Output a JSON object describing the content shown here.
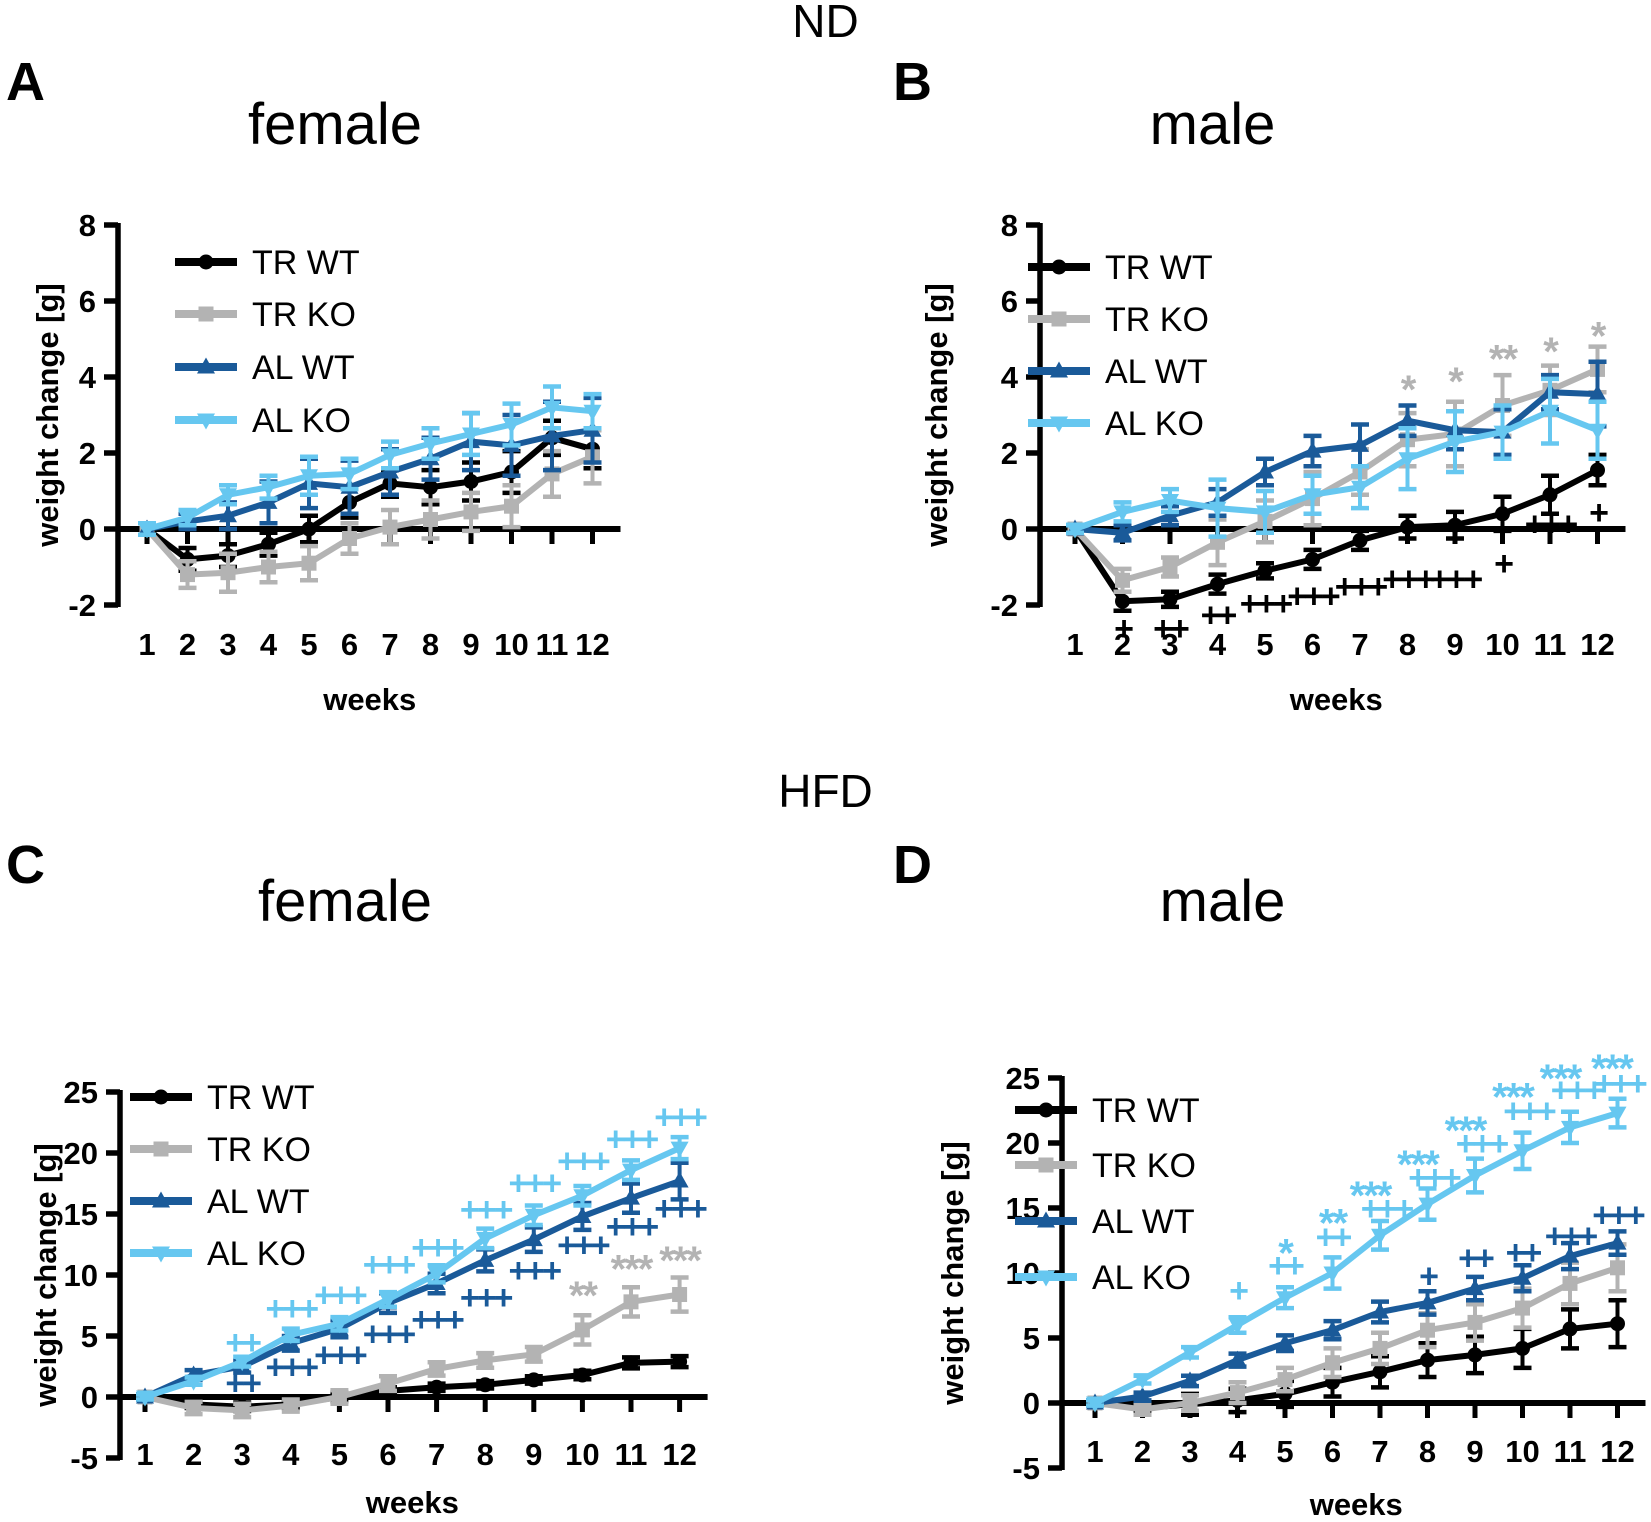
{
  "figure": {
    "group_titles": {
      "top": "ND",
      "bottom": "HFD"
    },
    "colors": {
      "black": "#000000",
      "gray": "#b3b3b3",
      "darkblue": "#1a5a99",
      "lightblue": "#66c7f0"
    }
  },
  "chart_data": [
    {
      "panel_label": "A",
      "title": "female",
      "diet_group": "ND",
      "type": "line",
      "xlabel": "weeks",
      "ylabel": "weight change [g]",
      "x": [
        1,
        2,
        3,
        4,
        5,
        6,
        7,
        8,
        9,
        10,
        11,
        12
      ],
      "ylim": [
        -2,
        8
      ],
      "yticks": [
        -2,
        0,
        2,
        4,
        6,
        8
      ],
      "grid": false,
      "legend_position": "top-left-inside",
      "series": [
        {
          "name": "TR WT",
          "color": "black",
          "marker": "circle",
          "values": [
            0,
            -0.8,
            -0.7,
            -0.4,
            0.0,
            0.7,
            1.2,
            1.1,
            1.25,
            1.5,
            2.4,
            2.1
          ],
          "errors": [
            0.15,
            0.3,
            0.3,
            0.3,
            0.35,
            0.4,
            0.35,
            0.45,
            0.5,
            0.55,
            0.45,
            0.5
          ]
        },
        {
          "name": "TR KO",
          "color": "gray",
          "marker": "square",
          "values": [
            0,
            -1.2,
            -1.15,
            -1.0,
            -0.9,
            -0.25,
            0.05,
            0.25,
            0.45,
            0.6,
            1.45,
            1.9
          ],
          "errors": [
            0.15,
            0.35,
            0.5,
            0.4,
            0.45,
            0.4,
            0.45,
            0.5,
            0.5,
            0.55,
            0.6,
            0.7
          ]
        },
        {
          "name": "AL WT",
          "color": "darkblue",
          "marker": "triangle-up",
          "values": [
            0,
            0.2,
            0.35,
            0.7,
            1.2,
            1.1,
            1.5,
            1.85,
            2.3,
            2.2,
            2.45,
            2.6
          ],
          "errors": [
            0.15,
            0.2,
            0.35,
            0.55,
            0.65,
            0.7,
            0.6,
            0.55,
            0.75,
            0.8,
            0.9,
            0.85
          ]
        },
        {
          "name": "AL KO",
          "color": "lightblue",
          "marker": "triangle-down",
          "values": [
            0,
            0.3,
            0.9,
            1.1,
            1.4,
            1.45,
            1.95,
            2.25,
            2.5,
            2.75,
            3.2,
            3.1
          ],
          "errors": [
            0.15,
            0.2,
            0.25,
            0.3,
            0.5,
            0.4,
            0.35,
            0.4,
            0.55,
            0.55,
            0.55,
            0.45
          ]
        }
      ],
      "annotations": []
    },
    {
      "panel_label": "B",
      "title": "male",
      "diet_group": "ND",
      "type": "line",
      "xlabel": "weeks",
      "ylabel": "weight change [g]",
      "x": [
        1,
        2,
        3,
        4,
        5,
        6,
        7,
        8,
        9,
        10,
        11,
        12
      ],
      "ylim": [
        -2,
        8
      ],
      "yticks": [
        -2,
        0,
        2,
        4,
        6,
        8
      ],
      "grid": false,
      "legend_position": "top-left-inside",
      "series": [
        {
          "name": "TR WT",
          "color": "black",
          "marker": "circle",
          "values": [
            0,
            -1.9,
            -1.85,
            -1.45,
            -1.1,
            -0.8,
            -0.3,
            0.05,
            0.1,
            0.4,
            0.9,
            1.55
          ],
          "errors": [
            0.1,
            0.25,
            0.2,
            0.25,
            0.2,
            0.25,
            0.25,
            0.3,
            0.35,
            0.45,
            0.5,
            0.4
          ]
        },
        {
          "name": "TR KO",
          "color": "gray",
          "marker": "square",
          "values": [
            0,
            -1.35,
            -1.0,
            -0.35,
            0.2,
            0.8,
            1.5,
            2.35,
            2.5,
            3.25,
            3.65,
            4.2
          ],
          "errors": [
            0.1,
            0.3,
            0.25,
            0.6,
            0.55,
            0.7,
            0.6,
            0.7,
            0.85,
            0.8,
            0.65,
            0.6
          ]
        },
        {
          "name": "AL WT",
          "color": "darkblue",
          "marker": "triangle-up",
          "values": [
            0,
            -0.1,
            0.35,
            0.7,
            1.5,
            2.05,
            2.2,
            2.85,
            2.6,
            2.55,
            3.6,
            3.55
          ],
          "errors": [
            0.1,
            0.2,
            0.25,
            0.35,
            0.35,
            0.4,
            0.55,
            0.4,
            0.5,
            0.6,
            0.45,
            0.85
          ]
        },
        {
          "name": "AL KO",
          "color": "lightblue",
          "marker": "triangle-down",
          "values": [
            0,
            0.45,
            0.75,
            0.55,
            0.45,
            0.9,
            1.1,
            1.85,
            2.3,
            2.55,
            3.1,
            2.6
          ],
          "errors": [
            0.1,
            0.25,
            0.3,
            0.75,
            0.55,
            0.5,
            0.55,
            0.8,
            0.8,
            0.7,
            0.85,
            0.75
          ]
        }
      ],
      "annotations": [
        {
          "week": 2,
          "text": "+",
          "color": "black",
          "y": -2.6
        },
        {
          "week": 3,
          "text": "++",
          "color": "black",
          "y": -2.6
        },
        {
          "week": 4,
          "text": "++",
          "color": "black",
          "y": -2.25
        },
        {
          "week": 5,
          "text": "+++",
          "color": "black",
          "y": -1.95
        },
        {
          "week": 6,
          "text": "+++",
          "color": "black",
          "y": -1.75
        },
        {
          "week": 7,
          "text": "+++",
          "color": "black",
          "y": -1.5
        },
        {
          "week": 8,
          "text": "+++",
          "color": "black",
          "y": -1.3
        },
        {
          "week": 9,
          "text": "+++",
          "color": "black",
          "y": -1.3
        },
        {
          "week": 10,
          "text": "+",
          "color": "black",
          "y": -0.9
        },
        {
          "week": 11,
          "text": "+++",
          "color": "black",
          "y": 0.15
        },
        {
          "week": 12,
          "text": "+",
          "color": "black",
          "y": 0.45
        },
        {
          "week": 8,
          "text": "*",
          "color": "gray",
          "y": 3.9
        },
        {
          "week": 9,
          "text": "*",
          "color": "gray",
          "y": 4.1
        },
        {
          "week": 10,
          "text": "**",
          "color": "gray",
          "y": 4.7
        },
        {
          "week": 11,
          "text": "*",
          "color": "gray",
          "y": 4.9
        },
        {
          "week": 12,
          "text": "*",
          "color": "gray",
          "y": 5.3
        }
      ]
    },
    {
      "panel_label": "C",
      "title": "female",
      "diet_group": "HFD",
      "type": "line",
      "xlabel": "weeks",
      "ylabel": "weight change [g]",
      "x": [
        1,
        2,
        3,
        4,
        5,
        6,
        7,
        8,
        9,
        10,
        11,
        12
      ],
      "ylim": [
        -5,
        25
      ],
      "yticks": [
        -5,
        0,
        5,
        10,
        15,
        20,
        25
      ],
      "grid": false,
      "legend_position": "top-left-inside",
      "series": [
        {
          "name": "TR WT",
          "color": "black",
          "marker": "circle",
          "values": [
            0,
            -0.6,
            -0.8,
            -0.6,
            0.0,
            0.5,
            0.8,
            1.0,
            1.4,
            1.8,
            2.8,
            2.9
          ],
          "errors": [
            0.2,
            0.3,
            0.35,
            0.3,
            0.35,
            0.3,
            0.3,
            0.3,
            0.3,
            0.35,
            0.45,
            0.45
          ]
        },
        {
          "name": "TR KO",
          "color": "gray",
          "marker": "square",
          "values": [
            0,
            -0.9,
            -1.1,
            -0.7,
            0.0,
            1.1,
            2.3,
            3.0,
            3.5,
            5.5,
            7.8,
            8.4
          ],
          "errors": [
            0.2,
            0.5,
            0.55,
            0.5,
            0.55,
            0.6,
            0.55,
            0.6,
            0.6,
            1.2,
            1.2,
            1.4
          ]
        },
        {
          "name": "AL WT",
          "color": "darkblue",
          "marker": "triangle-up",
          "values": [
            0,
            1.8,
            2.5,
            4.4,
            5.6,
            7.7,
            9.3,
            11.2,
            12.9,
            14.8,
            16.3,
            17.7
          ],
          "errors": [
            0.2,
            0.4,
            0.5,
            0.6,
            0.7,
            0.8,
            0.8,
            0.9,
            1.0,
            1.1,
            1.2,
            1.5
          ]
        },
        {
          "name": "AL KO",
          "color": "lightblue",
          "marker": "triangle-down",
          "values": [
            0,
            1.3,
            2.9,
            5.1,
            6.0,
            8.0,
            10.1,
            13.0,
            14.9,
            16.5,
            18.6,
            20.4
          ],
          "errors": [
            0.2,
            0.3,
            0.4,
            0.5,
            0.55,
            0.6,
            0.7,
            0.8,
            0.8,
            0.8,
            0.8,
            0.9
          ]
        }
      ],
      "annotations": [
        {
          "week": 3,
          "text": "++",
          "color": "lightblue",
          "y": 4.5
        },
        {
          "week": 4,
          "text": "+++",
          "color": "lightblue",
          "y": 7.3
        },
        {
          "week": 5,
          "text": "+++",
          "color": "lightblue",
          "y": 8.4
        },
        {
          "week": 6,
          "text": "+++",
          "color": "lightblue",
          "y": 10.9
        },
        {
          "week": 7,
          "text": "+++",
          "color": "lightblue",
          "y": 12.3
        },
        {
          "week": 8,
          "text": "+++",
          "color": "lightblue",
          "y": 15.4
        },
        {
          "week": 9,
          "text": "+++",
          "color": "lightblue",
          "y": 17.6
        },
        {
          "week": 10,
          "text": "+++",
          "color": "lightblue",
          "y": 19.4
        },
        {
          "week": 11,
          "text": "+++",
          "color": "lightblue",
          "y": 21.2
        },
        {
          "week": 12,
          "text": "+++",
          "color": "lightblue",
          "y": 23.0
        },
        {
          "week": 3,
          "text": "++",
          "color": "darkblue",
          "y": 1.2
        },
        {
          "week": 4,
          "text": "+++",
          "color": "darkblue",
          "y": 2.5
        },
        {
          "week": 5,
          "text": "+++",
          "color": "darkblue",
          "y": 3.5
        },
        {
          "week": 6,
          "text": "+++",
          "color": "darkblue",
          "y": 5.2
        },
        {
          "week": 7,
          "text": "+++",
          "color": "darkblue",
          "y": 6.4
        },
        {
          "week": 8,
          "text": "+++",
          "color": "darkblue",
          "y": 8.2
        },
        {
          "week": 9,
          "text": "+++",
          "color": "darkblue",
          "y": 10.4
        },
        {
          "week": 10,
          "text": "+++",
          "color": "darkblue",
          "y": 12.5
        },
        {
          "week": 11,
          "text": "+++",
          "color": "darkblue",
          "y": 14.0
        },
        {
          "week": 12,
          "text": "+++",
          "color": "darkblue",
          "y": 15.5
        },
        {
          "week": 10,
          "text": "**",
          "color": "gray",
          "y": 9.0
        },
        {
          "week": 11,
          "text": "***",
          "color": "gray",
          "y": 11.2
        },
        {
          "week": 12,
          "text": "***",
          "color": "gray",
          "y": 11.9
        }
      ]
    },
    {
      "panel_label": "D",
      "title": "male",
      "diet_group": "HFD",
      "type": "line",
      "xlabel": "weeks",
      "ylabel": "weight change [g]",
      "x": [
        1,
        2,
        3,
        4,
        5,
        6,
        7,
        8,
        9,
        10,
        11,
        12
      ],
      "ylim": [
        -5,
        25
      ],
      "yticks": [
        -5,
        0,
        5,
        10,
        15,
        20,
        25
      ],
      "grid": false,
      "legend_position": "top-left-inside",
      "series": [
        {
          "name": "TR WT",
          "color": "black",
          "marker": "circle",
          "values": [
            0,
            -0.4,
            -0.1,
            0.2,
            0.7,
            1.6,
            2.4,
            3.3,
            3.7,
            4.2,
            5.7,
            6.1
          ],
          "errors": [
            0.2,
            0.4,
            0.8,
            0.9,
            1.0,
            1.1,
            1.2,
            1.3,
            1.4,
            1.5,
            1.5,
            1.8
          ]
        },
        {
          "name": "TR KO",
          "color": "gray",
          "marker": "square",
          "values": [
            0,
            -0.5,
            0.0,
            0.8,
            1.8,
            3.1,
            4.2,
            5.6,
            6.2,
            7.3,
            9.2,
            10.4
          ],
          "errors": [
            0.2,
            0.4,
            0.6,
            0.8,
            0.9,
            1.1,
            1.2,
            1.3,
            1.4,
            1.5,
            1.6,
            1.8
          ]
        },
        {
          "name": "AL WT",
          "color": "darkblue",
          "marker": "triangle-up",
          "values": [
            0,
            0.5,
            1.7,
            3.3,
            4.6,
            5.6,
            7.0,
            7.7,
            8.8,
            9.6,
            11.3,
            12.3
          ],
          "errors": [
            0.2,
            0.3,
            0.4,
            0.5,
            0.6,
            0.7,
            0.8,
            0.9,
            0.9,
            1.0,
            1.0,
            0.9
          ]
        },
        {
          "name": "AL KO",
          "color": "lightblue",
          "marker": "triangle-down",
          "values": [
            0,
            1.8,
            3.9,
            6.0,
            8.1,
            10.0,
            12.9,
            15.3,
            17.5,
            19.4,
            21.2,
            22.3
          ],
          "errors": [
            0.2,
            0.3,
            0.4,
            0.6,
            0.8,
            1.2,
            1.1,
            1.2,
            1.3,
            1.4,
            1.2,
            1.1
          ]
        }
      ],
      "annotations": [
        {
          "week": 4,
          "text": "+",
          "color": "lightblue",
          "y": 8.7
        },
        {
          "week": 5,
          "text": "++",
          "color": "lightblue",
          "y": 10.6
        },
        {
          "week": 5,
          "text": "*",
          "color": "lightblue",
          "y": 12.2
        },
        {
          "week": 6,
          "text": "++",
          "color": "lightblue",
          "y": 12.8
        },
        {
          "week": 6,
          "text": "**",
          "color": "lightblue",
          "y": 14.5
        },
        {
          "week": 7,
          "text": "+++",
          "color": "lightblue",
          "y": 15.0,
          "dx": 6
        },
        {
          "week": 7,
          "text": "***",
          "color": "lightblue",
          "y": 16.6,
          "dx": -10
        },
        {
          "week": 8,
          "text": "+++",
          "color": "lightblue",
          "y": 17.4,
          "dx": 6
        },
        {
          "week": 8,
          "text": "***",
          "color": "lightblue",
          "y": 19.0,
          "dx": -10
        },
        {
          "week": 9,
          "text": "+++",
          "color": "lightblue",
          "y": 20.0,
          "dx": 6
        },
        {
          "week": 9,
          "text": "***",
          "color": "lightblue",
          "y": 21.6,
          "dx": -10
        },
        {
          "week": 10,
          "text": "+++",
          "color": "lightblue",
          "y": 22.5,
          "dx": 6
        },
        {
          "week": 10,
          "text": "***",
          "color": "lightblue",
          "y": 24.2,
          "dx": -10
        },
        {
          "week": 11,
          "text": "+++",
          "color": "lightblue",
          "y": 24.1,
          "dx": 6
        },
        {
          "week": 11,
          "text": "***",
          "color": "lightblue",
          "y": 25.6,
          "dx": -10
        },
        {
          "week": 12,
          "text": "+++",
          "color": "lightblue",
          "y": 24.6,
          "dx": 2
        },
        {
          "week": 12,
          "text": "***",
          "color": "lightblue",
          "y": 26.4,
          "dx": -6
        },
        {
          "week": 8,
          "text": "+",
          "color": "darkblue",
          "y": 9.8
        },
        {
          "week": 9,
          "text": "++",
          "color": "darkblue",
          "y": 11.2
        },
        {
          "week": 10,
          "text": "++",
          "color": "darkblue",
          "y": 11.6
        },
        {
          "week": 11,
          "text": "+++",
          "color": "darkblue",
          "y": 12.9
        },
        {
          "week": 12,
          "text": "+++",
          "color": "darkblue",
          "y": 14.5
        }
      ]
    }
  ]
}
